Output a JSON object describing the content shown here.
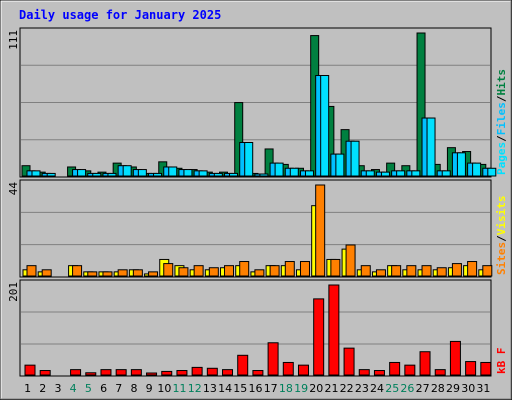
{
  "title": "Daily usage for January 2025",
  "colors": {
    "hits": "#008040",
    "files": "#00c0ff",
    "pages": "#00e0ff",
    "sites": "#ff8000",
    "visits": "#ffff00",
    "kbytes": "#ff0000",
    "weekend_day": "#00805c",
    "weekday_day": "#000000",
    "title": "#0000ff",
    "panel_bg": "#c0c0c0"
  },
  "chart_data": [
    {
      "type": "bar",
      "panel": "hits_files_pages",
      "ymax_label": "111",
      "ylim": [
        0,
        111
      ],
      "categories": [
        "1",
        "2",
        "3",
        "4",
        "5",
        "6",
        "7",
        "8",
        "9",
        "10",
        "11",
        "12",
        "13",
        "14",
        "15",
        "16",
        "17",
        "18",
        "19",
        "20",
        "21",
        "22",
        "23",
        "24",
        "25",
        "26",
        "27",
        "28",
        "29",
        "30",
        "31"
      ],
      "legend": [
        "Pages",
        "/",
        "Files",
        "/",
        "Hits"
      ],
      "series": [
        {
          "name": "Hits",
          "values": [
            8,
            3,
            0,
            7,
            4,
            3,
            10,
            7,
            2,
            11,
            6,
            5,
            3,
            3,
            57,
            2,
            21,
            9,
            6,
            109,
            54,
            36,
            8,
            5,
            10,
            8,
            111,
            9,
            22,
            19,
            9
          ]
        },
        {
          "name": "Files",
          "values": [
            4,
            2,
            0,
            5,
            2,
            2,
            8,
            5,
            2,
            7,
            5,
            4,
            2,
            2,
            26,
            1,
            10,
            6,
            4,
            78,
            17,
            27,
            4,
            3,
            4,
            4,
            45,
            4,
            18,
            10,
            6
          ]
        },
        {
          "name": "Pages",
          "values": [
            4,
            2,
            0,
            5,
            2,
            2,
            8,
            5,
            2,
            7,
            5,
            4,
            2,
            2,
            26,
            1,
            10,
            6,
            4,
            78,
            17,
            27,
            4,
            3,
            4,
            4,
            45,
            4,
            18,
            10,
            6
          ]
        }
      ]
    },
    {
      "type": "bar",
      "panel": "sites_visits",
      "ymax_label": "44",
      "ylim": [
        0,
        44
      ],
      "categories": [
        "1",
        "2",
        "3",
        "4",
        "5",
        "6",
        "7",
        "8",
        "9",
        "10",
        "11",
        "12",
        "13",
        "14",
        "15",
        "16",
        "17",
        "18",
        "19",
        "20",
        "21",
        "22",
        "23",
        "24",
        "25",
        "26",
        "27",
        "28",
        "29",
        "30",
        "31"
      ],
      "legend": [
        "Sites",
        "/",
        "Visits"
      ],
      "series": [
        {
          "name": "Visits",
          "values": [
            3,
            2,
            0,
            5,
            2,
            2,
            2,
            3,
            1,
            8,
            5,
            3,
            3,
            4,
            5,
            2,
            5,
            5,
            3,
            34,
            8,
            13,
            3,
            2,
            5,
            3,
            3,
            3,
            4,
            5,
            3
          ]
        },
        {
          "name": "Sites",
          "values": [
            5,
            3,
            0,
            5,
            2,
            2,
            3,
            3,
            2,
            6,
            4,
            5,
            4,
            5,
            7,
            3,
            5,
            7,
            7,
            44,
            8,
            15,
            5,
            3,
            5,
            5,
            5,
            4,
            6,
            7,
            5
          ]
        }
      ]
    },
    {
      "type": "bar",
      "panel": "kbytes",
      "ymax_label": "201",
      "ylim": [
        0,
        201
      ],
      "categories": [
        "1",
        "2",
        "3",
        "4",
        "5",
        "6",
        "7",
        "8",
        "9",
        "10",
        "11",
        "12",
        "13",
        "14",
        "15",
        "16",
        "17",
        "18",
        "19",
        "20",
        "21",
        "22",
        "23",
        "24",
        "25",
        "26",
        "27",
        "28",
        "29",
        "30",
        "31"
      ],
      "legend": [
        "kB",
        "F"
      ],
      "series": [
        {
          "name": "kB F",
          "values": [
            22,
            10,
            0,
            12,
            5,
            12,
            12,
            12,
            4,
            8,
            10,
            17,
            15,
            12,
            44,
            10,
            72,
            28,
            22,
            170,
            201,
            60,
            12,
            10,
            28,
            22,
            52,
            12,
            75,
            30,
            28
          ]
        }
      ]
    }
  ]
}
